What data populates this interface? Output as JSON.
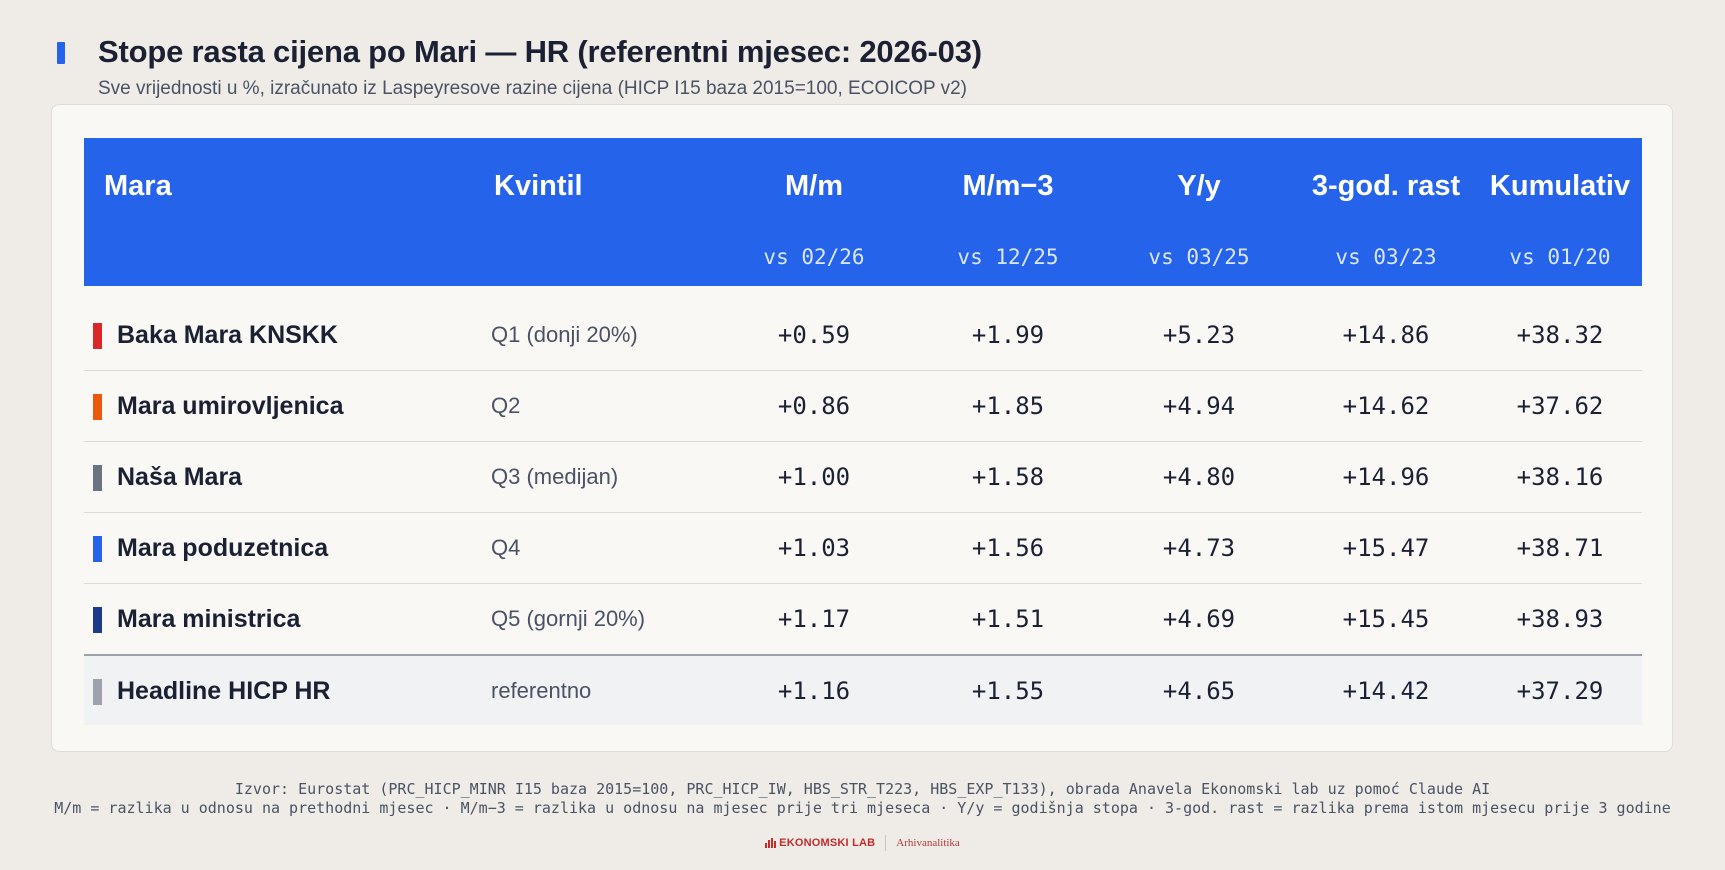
{
  "header": {
    "title": "Stope rasta cijena po Mari — HR (referentni mjesec: 2026-03)",
    "subtitle": "Sve vrijednosti u %, izračunato iz Laspeyresove razine cijena (HICP I15 baza 2015=100, ECOICOP v2)",
    "accent_color": "#2563eb"
  },
  "table": {
    "columns": [
      {
        "label": "Mara",
        "sub": ""
      },
      {
        "label": "Kvintil",
        "sub": ""
      },
      {
        "label": "M/m",
        "sub": "vs 02/26"
      },
      {
        "label": "M/m−3",
        "sub": "vs 12/25"
      },
      {
        "label": "Y/y",
        "sub": "vs 03/25"
      },
      {
        "label": "3-god. rast",
        "sub": "vs 03/23"
      },
      {
        "label": "Kumulativ",
        "sub": "vs 01/20"
      }
    ],
    "rows": [
      {
        "name": "Baka Mara KNSKK",
        "quintile": "Q1 (donji 20%)",
        "color": "#dc2626",
        "mm": "+0.59",
        "mm3": "+1.99",
        "yy": "+5.23",
        "g3": "+14.86",
        "cum": "+38.32"
      },
      {
        "name": "Mara umirovljenica",
        "quintile": "Q2",
        "color": "#ea580c",
        "mm": "+0.86",
        "mm3": "+1.85",
        "yy": "+4.94",
        "g3": "+14.62",
        "cum": "+37.62"
      },
      {
        "name": "Naša Mara",
        "quintile": "Q3 (medijan)",
        "color": "#6b7280",
        "mm": "+1.00",
        "mm3": "+1.58",
        "yy": "+4.80",
        "g3": "+14.96",
        "cum": "+38.16"
      },
      {
        "name": "Mara poduzetnica",
        "quintile": "Q4",
        "color": "#2563eb",
        "mm": "+1.03",
        "mm3": "+1.56",
        "yy": "+4.73",
        "g3": "+15.47",
        "cum": "+38.71"
      },
      {
        "name": "Mara ministrica",
        "quintile": "Q5 (gornji 20%)",
        "color": "#1e3a8a",
        "mm": "+1.17",
        "mm3": "+1.51",
        "yy": "+4.69",
        "g3": "+15.45",
        "cum": "+38.93"
      },
      {
        "name": "Headline HICP HR",
        "quintile": "referentno",
        "color": "#9ca3af",
        "mm": "+1.16",
        "mm3": "+1.55",
        "yy": "+4.65",
        "g3": "+14.42",
        "cum": "+37.29"
      }
    ]
  },
  "footer": {
    "source": "Izvor: Eurostat (PRC_HICP_MINR I15 baza 2015=100, PRC_HICP_IW, HBS_STR_T223, HBS_EXP_T133), obrada Anavela Ekonomski lab uz pomoć Claude AI",
    "legend": "M/m = razlika u odnosu na prethodni mjesec · M/m−3 = razlika u odnosu na mjesec prije tri mjeseca · Y/y = godišnja stopa · 3-god. rast = razlika prema istom mjesecu prije 3 godine",
    "brand_main": "EKONOMSKI LAB",
    "brand_sub": "Arhivanalitika"
  }
}
